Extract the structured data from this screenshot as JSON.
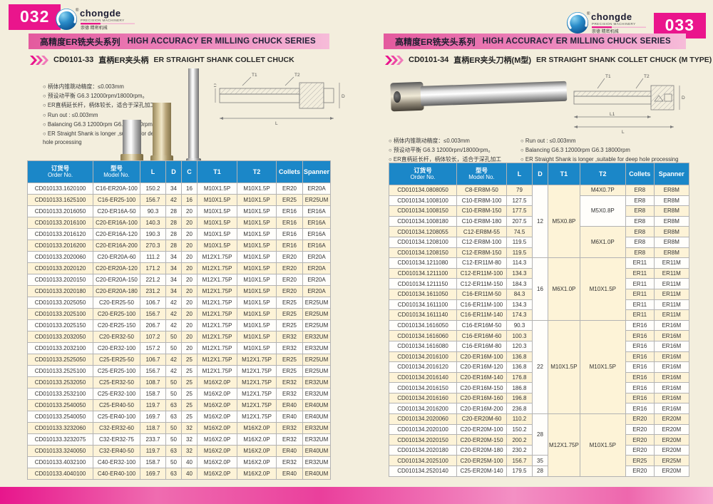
{
  "brand": {
    "name": "chongde",
    "tagline": "PRECISION MACHINERY",
    "cn": "崇德 精密机械",
    "reg": "®"
  },
  "colors": {
    "magenta": "#ea158c",
    "table_header_blue": "#1b87c8",
    "row_beige": "#fdf3d7",
    "banner_pink": "#e45a9e"
  },
  "pages": [
    {
      "page_number": "032",
      "series": {
        "cn": "高精度ER铣夹头系列",
        "en": "HIGH ACCURACY ER MILLING CHUCK SERIES"
      },
      "section": {
        "code": "CD0101-33",
        "cn": "直柄ER夹头柄",
        "en": "ER STRAIGHT SHANK COLLET CHUCK"
      },
      "notes_cn": [
        "柄体内锥跳动精度：≤0.003mm",
        "预设动平衡 G6.3 12000rpm/18000rpm。",
        "ER直柄延长杆，柄体较长，适合于深孔加工。"
      ],
      "notes_en": [
        "Run out : ≤0.003mm",
        "Balancing G6.3 12000rpm G6.3 18000rpm",
        "ER Straight Shank is longer ,suitable for deep hole processing"
      ],
      "diagram_labels": {
        "t1": "T1",
        "t2": "T2",
        "d": "D",
        "c": "C",
        "l": "L"
      },
      "table": {
        "headers": [
          {
            "c": "订货号",
            "e": "Order No."
          },
          {
            "c": "型号",
            "e": "Model No."
          },
          {
            "c": "L"
          },
          {
            "c": "D"
          },
          {
            "c": "C"
          },
          {
            "c": "T1"
          },
          {
            "c": "T2"
          },
          {
            "c": "Collets"
          },
          {
            "c": "Spanner"
          }
        ],
        "rows": [
          [
            "CD010133.1620100",
            "C16-ER20A-100",
            "150.2",
            "34",
            "16",
            "M10X1.5P",
            "M10X1.5P",
            "ER20",
            "ER20A"
          ],
          [
            "CD010133.1625100",
            "C16-ER25-100",
            "156.7",
            "42",
            "16",
            "M10X1.5P",
            "M10X1.5P",
            "ER25",
            "ER25UM"
          ],
          [
            "CD010133.2016050",
            "C20-ER16A-50",
            "90.3",
            "28",
            "20",
            "M10X1.5P",
            "M10X1.5P",
            "ER16",
            "ER16A"
          ],
          [
            "CD010133.2016100",
            "C20-ER16A-100",
            "140.3",
            "28",
            "20",
            "M10X1.5P",
            "M10X1.5P",
            "ER16",
            "ER16A"
          ],
          [
            "CD010133.2016120",
            "C20-ER16A-120",
            "190.3",
            "28",
            "20",
            "M10X1.5P",
            "M10X1.5P",
            "ER16",
            "ER16A"
          ],
          [
            "CD010133.2016200",
            "C20-ER16A-200",
            "270.3",
            "28",
            "20",
            "M10X1.5P",
            "M10X1.5P",
            "ER16",
            "ER16A"
          ],
          [
            "CD010133.2020060",
            "C20-ER20A-60",
            "111.2",
            "34",
            "20",
            "M12X1.75P",
            "M10X1.5P",
            "ER20",
            "ER20A"
          ],
          [
            "CD010133.2020120",
            "C20-ER20A-120",
            "171.2",
            "34",
            "20",
            "M12X1.75P",
            "M10X1.5P",
            "ER20",
            "ER20A"
          ],
          [
            "CD010133.2020150",
            "C20-ER20A-150",
            "221.2",
            "34",
            "20",
            "M12X1.75P",
            "M10X1.5P",
            "ER20",
            "ER20A"
          ],
          [
            "CD010133.2020180",
            "C20-ER20A-180",
            "231.2",
            "34",
            "20",
            "M12X1.75P",
            "M10X1.5P",
            "ER20",
            "ER20A"
          ],
          [
            "CD010133.2025050",
            "C20-ER25-50",
            "106.7",
            "42",
            "20",
            "M12X1.75P",
            "M10X1.5P",
            "ER25",
            "ER25UM"
          ],
          [
            "CD010133.2025100",
            "C20-ER25-100",
            "156.7",
            "42",
            "20",
            "M12X1.75P",
            "M10X1.5P",
            "ER25",
            "ER25UM"
          ],
          [
            "CD010133.2025150",
            "C20-ER25-150",
            "206.7",
            "42",
            "20",
            "M12X1.75P",
            "M10X1.5P",
            "ER25",
            "ER25UM"
          ],
          [
            "CD010133.2032050",
            "C20-ER32-50",
            "107.2",
            "50",
            "20",
            "M12X1.75P",
            "M10X1.5P",
            "ER32",
            "ER32UM"
          ],
          [
            "CD010133.2032100",
            "C20-ER32-100",
            "157.2",
            "50",
            "20",
            "M12X1.75P",
            "M10X1.5P",
            "ER32",
            "ER32UM"
          ],
          [
            "CD010133.2525050",
            "C25-ER25-50",
            "106.7",
            "42",
            "25",
            "M12X1.75P",
            "M12X1.75P",
            "ER25",
            "ER25UM"
          ],
          [
            "CD010133.2525100",
            "C25-ER25-100",
            "156.7",
            "42",
            "25",
            "M12X1.75P",
            "M12X1.75P",
            "ER25",
            "ER25UM"
          ],
          [
            "CD010133.2532050",
            "C25-ER32-50",
            "108.7",
            "50",
            "25",
            "M16X2.0P",
            "M12X1.75P",
            "ER32",
            "ER32UM"
          ],
          [
            "CD010133.2532100",
            "C25-ER32-100",
            "158.7",
            "50",
            "25",
            "M16X2.0P",
            "M12X1.75P",
            "ER32",
            "ER32UM"
          ],
          [
            "CD010133.2540050",
            "C25-ER40-50",
            "119.7",
            "63",
            "25",
            "M16X2.0P",
            "M12X1.75P",
            "ER40",
            "ER40UM"
          ],
          [
            "CD010133.2540050",
            "C25-ER40-100",
            "169.7",
            "63",
            "25",
            "M16X2.0P",
            "M12X1.75P",
            "ER40",
            "ER40UM"
          ],
          [
            "CD010133.3232060",
            "C32-ER32-60",
            "118.7",
            "50",
            "32",
            "M16X2.0P",
            "M16X2.0P",
            "ER32",
            "ER32UM"
          ],
          [
            "CD010133.3232075",
            "C32-ER32-75",
            "233.7",
            "50",
            "32",
            "M16X2.0P",
            "M16X2.0P",
            "ER32",
            "ER32UM"
          ],
          [
            "CD010133.3240050",
            "C32-ER40-50",
            "119.7",
            "63",
            "32",
            "M16X2.0P",
            "M16X2.0P",
            "ER40",
            "ER40UM"
          ],
          [
            "CD010133.4032100",
            "C40-ER32-100",
            "158.7",
            "50",
            "40",
            "M16X2.0P",
            "M16X2.0P",
            "ER32",
            "ER32UM"
          ],
          [
            "CD010133.4040100",
            "C40-ER40-100",
            "169.7",
            "63",
            "40",
            "M16X2.0P",
            "M16X2.0P",
            "ER40",
            "ER40UM"
          ]
        ]
      }
    },
    {
      "page_number": "033",
      "series": {
        "cn": "高精度ER铣夹头系列",
        "en": "HIGH ACCURACY ER MILLING CHUCK SERIES"
      },
      "section": {
        "code": "CD0101-34",
        "cn": "直柄ER夹头刀柄(M型)",
        "en": "ER STRAIGHT SHANK COLLET CHUCK (M TYPE)"
      },
      "notes_cn": [
        "柄体内锥跳动精度：≤0.003mm",
        "预设动平衡 G6.3 12000rpm/18000rpm。",
        "ER直柄延长杆，柄体较长，适合于深孔加工"
      ],
      "notes_en": [
        "Run out : ≤0.003mm",
        "Balancing G6.3 12000rpm G6.3 18000rpm",
        "ER Straight Shank is longer ,suitable for deep hole processing"
      ],
      "diagram_labels": {
        "t1": "T1",
        "t2": "T2",
        "d": "D",
        "l1": "L1",
        "l": "L"
      },
      "table": {
        "headers": [
          {
            "c": "订货号",
            "e": "Order No."
          },
          {
            "c": "型号",
            "e": "Model No."
          },
          {
            "c": "L"
          },
          {
            "c": "D"
          },
          {
            "c": "T1"
          },
          {
            "c": "T2"
          },
          {
            "c": "Collets"
          },
          {
            "c": "Spanner"
          }
        ],
        "rows": [
          [
            "CD010134.0808050",
            "C8-ER8M-50",
            "79",
            {
              "t": "12",
              "rs": 7,
              "bg": "w"
            },
            {
              "t": "M5X0.8P",
              "rs": 7,
              "bg": "b"
            },
            {
              "t": "M4X0.7P",
              "bg": "b"
            },
            "ER8",
            "ER8M"
          ],
          [
            "CD010134.1008100",
            "C10-ER8M-100",
            "127.5",
            {
              "t": "M5X0.8P",
              "rs": 3,
              "bg": "w"
            },
            "ER8",
            "ER8M"
          ],
          [
            "CD010134.1008150",
            "C10-ER8M-150",
            "177.5",
            "ER8",
            "ER8M"
          ],
          [
            "CD010134.1008180",
            "C10-ER8M-180",
            "207.5",
            "ER8",
            "ER8M"
          ],
          [
            "CD010134.1208055",
            "C12-ER8M-55",
            "74.5",
            {
              "t": "M6X1.0P",
              "rs": 3,
              "bg": "b"
            },
            "ER8",
            "ER8M"
          ],
          [
            "CD010134.1208100",
            "C12-ER8M-100",
            "119.5",
            "ER8",
            "ER8M"
          ],
          [
            "CD010134.1208150",
            "C12-ER8M-150",
            "119.5",
            "ER8",
            "ER8M"
          ],
          [
            "CD010134.1211080",
            "C12-ER11M-80",
            "114.3",
            {
              "t": "16",
              "rs": 6,
              "bg": "w"
            },
            {
              "t": "M6X1.0P",
              "rs": 6,
              "bg": "b"
            },
            {
              "t": "M10X1.5P",
              "rs": 6,
              "bg": "b"
            },
            "ER11",
            "ER11M"
          ],
          [
            "CD010134.1211100",
            "C12-ER11M-100",
            "134.3",
            "ER11",
            "ER11M"
          ],
          [
            "CD010134.1211150",
            "C12-ER11M-150",
            "184.3",
            "ER11",
            "ER11M"
          ],
          [
            "CD010134.1611050",
            "C16-ER11M-50",
            "84.3",
            "ER11",
            "ER11M"
          ],
          [
            "CD010134.1611100",
            "C16-ER11M-100",
            "134.3",
            "ER11",
            "ER11M"
          ],
          [
            "CD010134.1611140",
            "C16-ER11M-140",
            "174.3",
            "ER11",
            "ER11M"
          ],
          [
            "CD010134.1616050",
            "C16-ER16M-50",
            "90.3",
            {
              "t": "22",
              "rs": 9,
              "bg": "w"
            },
            {
              "t": "M10X1.5P",
              "rs": 9,
              "bg": "b"
            },
            {
              "t": "M10X1.5P",
              "rs": 9,
              "bg": "b"
            },
            "ER16",
            "ER16M"
          ],
          [
            "CD010134.1616060",
            "C16-ER16M-60",
            "100.3",
            "ER16",
            "ER16M"
          ],
          [
            "CD010134.1616080",
            "C16-ER16M-80",
            "120.3",
            "ER16",
            "ER16M"
          ],
          [
            "CD010134.2016100",
            "C20-ER16M-100",
            "136.8",
            "ER16",
            "ER16M"
          ],
          [
            "CD010134.2016120",
            "C20-ER16M-120",
            "136.8",
            "ER16",
            "ER16M"
          ],
          [
            "CD010134.2016140",
            "C20-ER16M-140",
            "176.8",
            "ER16",
            "ER16M"
          ],
          [
            "CD010134.2016150",
            "C20-ER16M-150",
            "186.8",
            "ER16",
            "ER16M"
          ],
          [
            "CD010134.2016160",
            "C20-ER16M-160",
            "196.8",
            "ER16",
            "ER16M"
          ],
          [
            "CD010134.2016200",
            "C20-ER16M-200",
            "236.8",
            "ER16",
            "ER16M"
          ],
          [
            "CD010134.2020060",
            "C20-ER20M-60",
            "110.2",
            {
              "t": "28",
              "rs": 4,
              "bg": "w"
            },
            {
              "t": "M12X1.75P",
              "rs": 6,
              "bg": "b"
            },
            {
              "t": "M10X1.5P",
              "rs": 6,
              "bg": "b"
            },
            "ER20",
            "ER20M"
          ],
          [
            "CD010134.2020100",
            "C20-ER20M-100",
            "150.2",
            "ER20",
            "ER20M"
          ],
          [
            "CD010134.2020150",
            "C20-ER20M-150",
            "200.2",
            "ER20",
            "ER20M"
          ],
          [
            "CD010134.2020180",
            "C20-ER20M-180",
            "230.2",
            "ER20",
            "ER20M"
          ],
          [
            "CD010134.2025100",
            "C20-ER25M-100",
            "156.7",
            {
              "t": "35",
              "bg": "w"
            },
            "ER25",
            "ER25M"
          ],
          [
            "CD010134.2520140",
            "C25-ER20M-140",
            "179.5",
            {
              "t": "28",
              "bg": "w"
            },
            "ER20",
            "ER20M"
          ]
        ]
      }
    }
  ]
}
